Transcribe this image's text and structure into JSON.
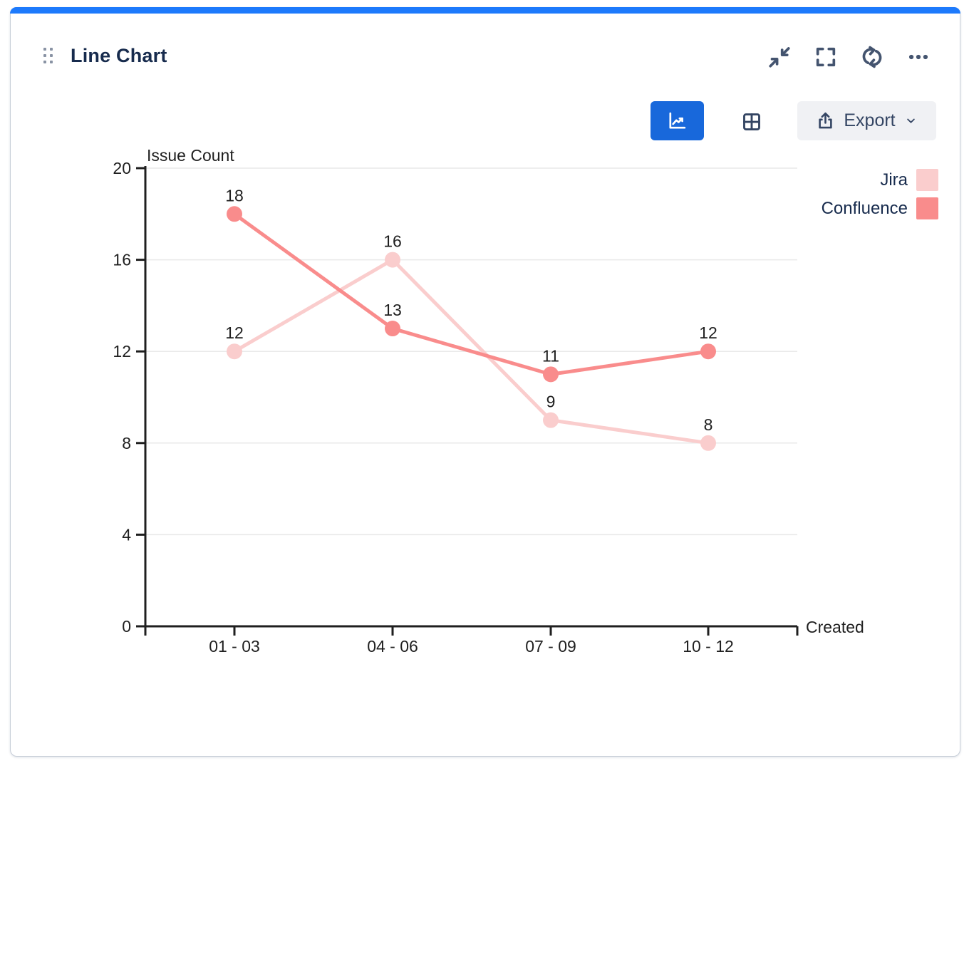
{
  "accent": {
    "top_bar_color": "#1D7AFC",
    "active_button_color": "#1868DB"
  },
  "header": {
    "title": "Line Chart",
    "icons": {
      "drag": "six-dots-handle",
      "collapse": "collapse-arrows",
      "fullscreen": "corner-brackets",
      "refresh": "circular-arrows",
      "more": "ellipsis"
    }
  },
  "toolbar": {
    "export_label": "Export",
    "active_view": "chart",
    "icons": {
      "chart_view": "line-chart",
      "table_view": "grid",
      "export": "share-up-arrow",
      "dropdown": "chevron-down"
    }
  },
  "chart_data": {
    "type": "line",
    "title": "",
    "categories": [
      "01 - 03",
      "04 - 06",
      "07 - 09",
      "10 - 12"
    ],
    "series": [
      {
        "name": "Jira",
        "color": "#FACDCD",
        "values": [
          12,
          16,
          9,
          8
        ]
      },
      {
        "name": "Confluence",
        "color": "#F98C8C",
        "values": [
          18,
          13,
          11,
          12
        ]
      }
    ],
    "xlabel": "Created",
    "ylabel": "Issue Count",
    "ylim": [
      0,
      20
    ],
    "yticks": [
      0,
      4,
      8,
      12,
      16,
      20
    ],
    "grid": true,
    "legend_position": "top-right",
    "point_labels": true
  }
}
